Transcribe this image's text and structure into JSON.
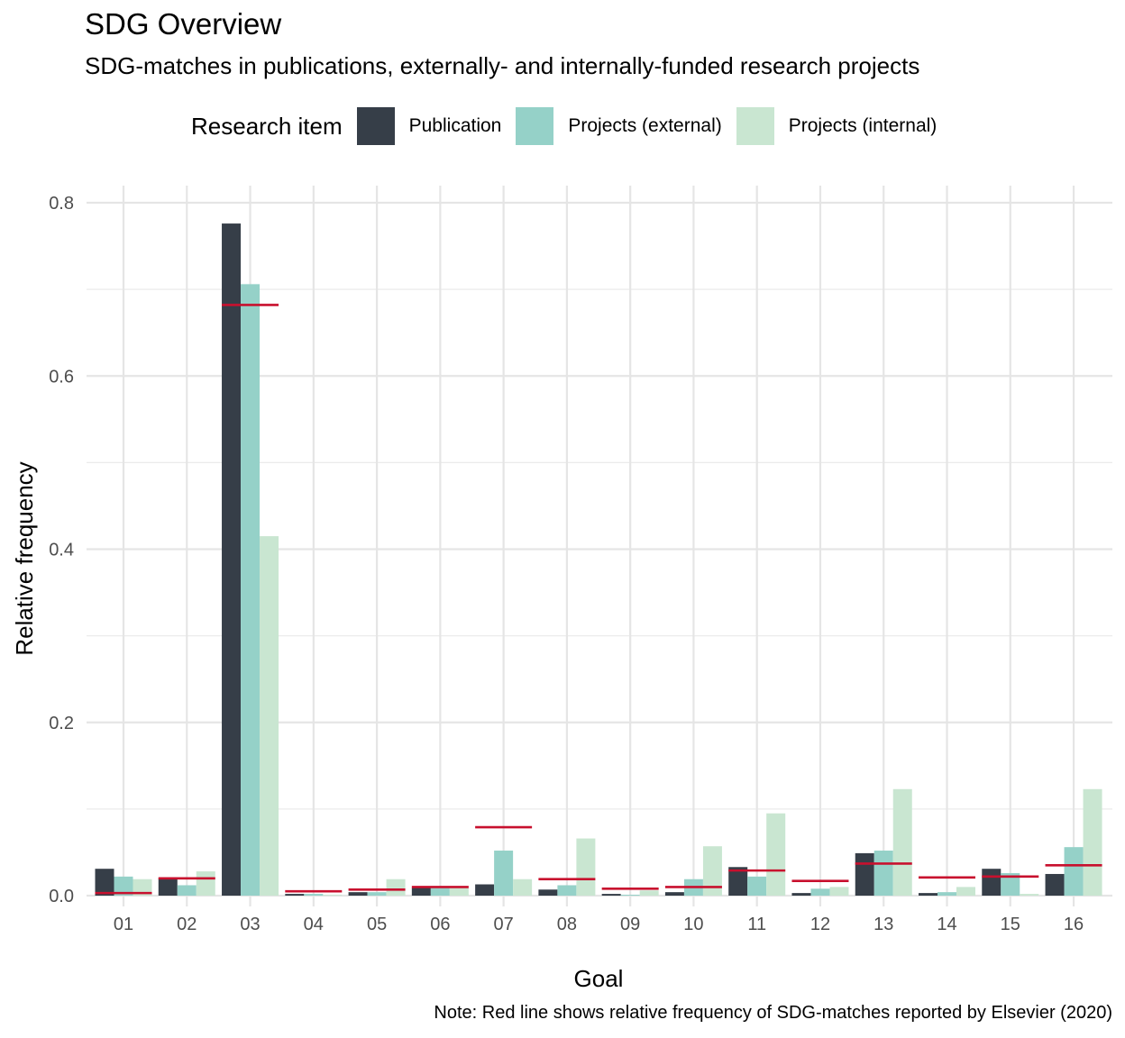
{
  "chart_data": {
    "type": "bar",
    "title": "SDG Overview",
    "subtitle": "SDG-matches in publications, externally- and internally-funded research projects",
    "legend_title": "Research item",
    "legend_position": "top",
    "xlabel": "Goal",
    "ylabel": "Relative frequency",
    "caption": "Note: Red line shows relative frequency of SDG-matches reported by Elsevier (2020)",
    "ylim": [
      0,
      0.8
    ],
    "y_ticks": [
      "0.0",
      "0.2",
      "0.4",
      "0.6",
      "0.8"
    ],
    "grid": true,
    "categories": [
      "01",
      "02",
      "03",
      "04",
      "05",
      "06",
      "07",
      "08",
      "09",
      "10",
      "11",
      "12",
      "13",
      "14",
      "15",
      "16"
    ],
    "series": [
      {
        "name": "Publication",
        "color": "#363e48",
        "values": [
          0.031,
          0.02,
          0.776,
          0.002,
          0.004,
          0.009,
          0.013,
          0.007,
          0.002,
          0.004,
          0.033,
          0.003,
          0.049,
          0.003,
          0.031,
          0.025
        ]
      },
      {
        "name": "Projects (external)",
        "color": "#95d1c8",
        "values": [
          0.022,
          0.012,
          0.706,
          0.002,
          0.004,
          0.009,
          0.052,
          0.012,
          0.001,
          0.019,
          0.022,
          0.008,
          0.052,
          0.004,
          0.026,
          0.056
        ]
      },
      {
        "name": "Projects (internal)",
        "color": "#c9e6d1",
        "values": [
          0.019,
          0.028,
          0.415,
          0.001,
          0.019,
          0.009,
          0.019,
          0.066,
          0.006,
          0.057,
          0.095,
          0.01,
          0.123,
          0.01,
          0.002,
          0.123
        ]
      }
    ],
    "reference": {
      "color": "#c8102e",
      "values": [
        0.003,
        0.02,
        0.682,
        0.005,
        0.007,
        0.01,
        0.079,
        0.019,
        0.008,
        0.01,
        0.029,
        0.017,
        0.037,
        0.021,
        0.022,
        0.035
      ]
    }
  }
}
